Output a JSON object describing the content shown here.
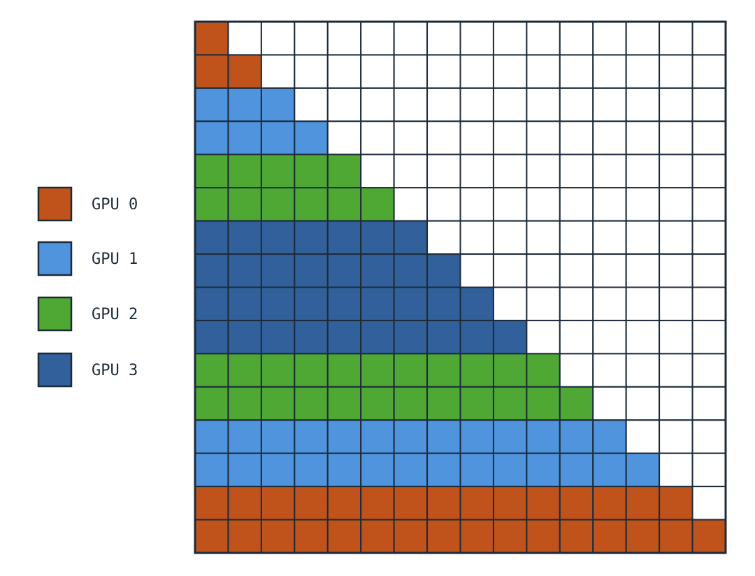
{
  "legend": [
    {
      "label": "GPU 0",
      "color": "#c0531b"
    },
    {
      "label": "GPU 1",
      "color": "#4f94dc"
    },
    {
      "label": "GPU 2",
      "color": "#4ea833"
    },
    {
      "label": "GPU 3",
      "color": "#31609a"
    }
  ],
  "grid": {
    "rows": [
      0,
      0,
      1,
      1,
      2,
      2,
      3,
      3,
      3,
      3,
      2,
      2,
      1,
      1,
      0,
      0
    ]
  }
}
